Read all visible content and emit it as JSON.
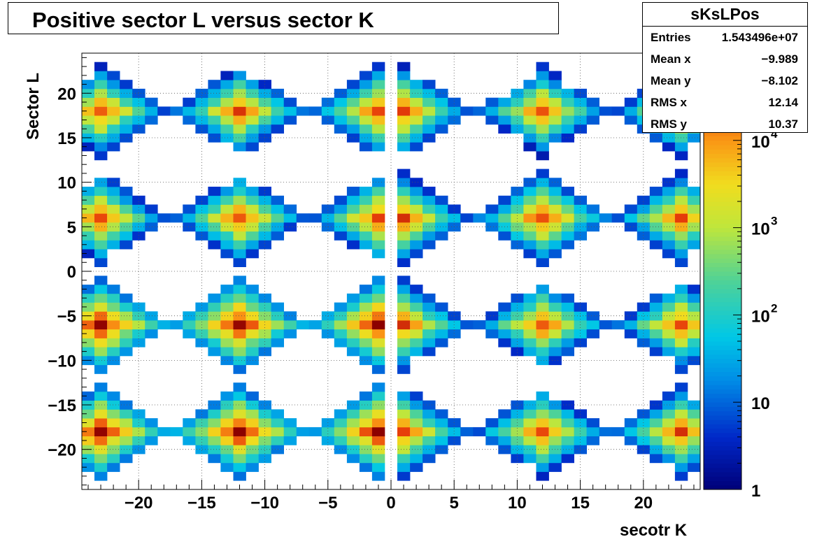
{
  "title": "Positive sector L versus sector K",
  "stats": {
    "name": "sKsLPos",
    "rows": [
      {
        "label": "Entries",
        "value": "1.543496e+07"
      },
      {
        "label": "Mean x",
        "value": "−9.989"
      },
      {
        "label": "Mean y",
        "value": "−8.102"
      },
      {
        "label": "RMS x",
        "value": "12.14"
      },
      {
        "label": "RMS y",
        "value": "10.37"
      }
    ]
  },
  "chart_data": {
    "type": "heatmap",
    "xlabel": "secotr K",
    "ylabel": "Sector L",
    "xlim": [
      -24.5,
      24.5
    ],
    "ylim": [
      -24.5,
      24.5
    ],
    "xticks": [
      "−20",
      "−15",
      "−10",
      "−5",
      "0",
      "5",
      "10",
      "15",
      "20"
    ],
    "yticks": [
      "20",
      "15",
      "10",
      "5",
      "0",
      "−5",
      "−10",
      "−15",
      "−20"
    ],
    "xtick_values": [
      -20,
      -15,
      -10,
      -5,
      0,
      5,
      10,
      15,
      20
    ],
    "ytick_values": [
      20,
      15,
      10,
      5,
      0,
      -5,
      -10,
      -15,
      -20
    ],
    "zscale": "log",
    "zlim": [
      1,
      100000
    ],
    "zticks": [
      {
        "value": 1,
        "label": "1"
      },
      {
        "value": 10,
        "label": "10"
      },
      {
        "value": 100,
        "label": "10",
        "exp": "2"
      },
      {
        "value": 1000,
        "label": "10",
        "exp": "3"
      },
      {
        "value": 10000,
        "label": "10",
        "exp": "4"
      }
    ],
    "grid": true,
    "clusters": [
      {
        "cx": -12,
        "cy": 18,
        "peak": 30000
      },
      {
        "cx": 12,
        "cy": 18,
        "peak": 25000
      },
      {
        "cx": -12,
        "cy": 6,
        "peak": 30000
      },
      {
        "cx": 12,
        "cy": 6,
        "peak": 40000
      },
      {
        "cx": -12,
        "cy": -6,
        "peak": 90000
      },
      {
        "cx": 12,
        "cy": -6,
        "peak": 30000
      },
      {
        "cx": -12,
        "cy": -18,
        "peak": 90000
      },
      {
        "cx": 12,
        "cy": -18,
        "peak": 30000
      },
      {
        "cx": -23,
        "cy": 18,
        "peak": 30000
      },
      {
        "cx": 23,
        "cy": 18,
        "peak": 30000
      },
      {
        "cx": -23,
        "cy": 6,
        "peak": 30000
      },
      {
        "cx": 23,
        "cy": 6,
        "peak": 30000
      },
      {
        "cx": -23,
        "cy": -6,
        "peak": 90000
      },
      {
        "cx": 23,
        "cy": -6,
        "peak": 30000
      },
      {
        "cx": -23,
        "cy": -18,
        "peak": 90000
      },
      {
        "cx": 23,
        "cy": -18,
        "peak": 30000
      },
      {
        "cx": -1,
        "cy": 18,
        "peak": 30000
      },
      {
        "cx": 1,
        "cy": 18,
        "peak": 30000
      },
      {
        "cx": -1,
        "cy": 6,
        "peak": 30000
      },
      {
        "cx": 1,
        "cy": 6,
        "peak": 30000
      },
      {
        "cx": -1,
        "cy": -6,
        "peak": 90000
      },
      {
        "cx": 1,
        "cy": -6,
        "peak": 30000
      },
      {
        "cx": -1,
        "cy": -18,
        "peak": 90000
      },
      {
        "cx": 1,
        "cy": -18,
        "peak": 30000
      }
    ]
  }
}
